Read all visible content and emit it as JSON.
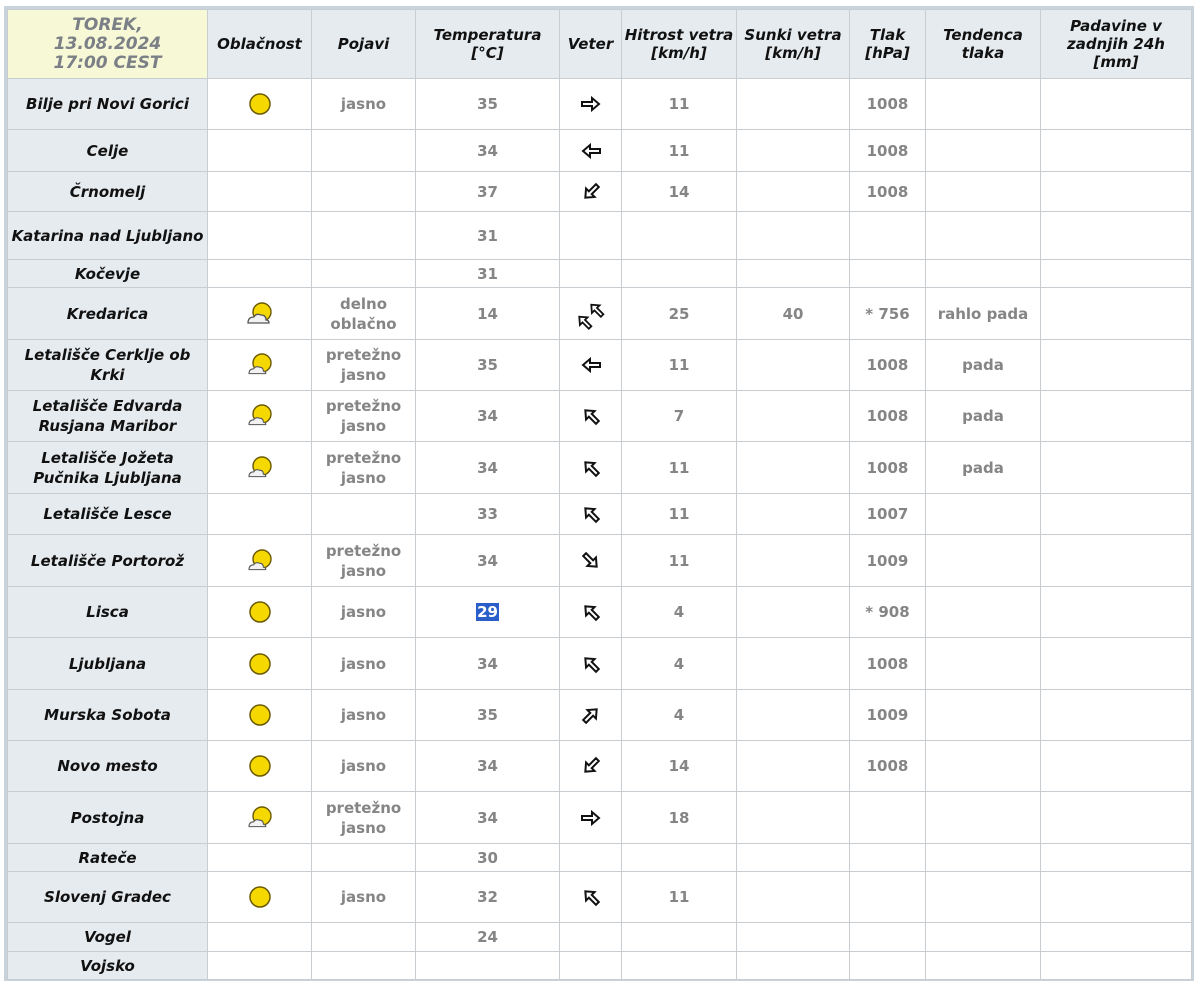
{
  "header": {
    "date_lines": [
      "TOREK,",
      "13.08.2024",
      "17:00 CEST"
    ],
    "columns": [
      "Oblačnost",
      "Pojavi",
      "Temperatura [°C]",
      "Veter",
      "Hitrost vetra [km/h]",
      "Sunki vetra [km/h]",
      "Tlak [hPa]",
      "Tendenca tlaka",
      "Padavine v zadnjih 24h [mm]"
    ]
  },
  "rows": [
    {
      "station": "Bilje pri Novi Gorici",
      "cloud": "sun-icon",
      "phen": "jasno",
      "temp": "35",
      "wind": "E",
      "speed": "11",
      "gust": "",
      "press": "1008",
      "trend": "",
      "precip": ""
    },
    {
      "station": "Celje",
      "cloud": "",
      "phen": "",
      "temp": "34",
      "wind": "W",
      "speed": "11",
      "gust": "",
      "press": "1008",
      "trend": "",
      "precip": ""
    },
    {
      "station": "Črnomelj",
      "cloud": "",
      "phen": "",
      "temp": "37",
      "wind": "SW",
      "speed": "14",
      "gust": "",
      "press": "1008",
      "trend": "",
      "precip": ""
    },
    {
      "station": "Katarina nad Ljubljano",
      "cloud": "",
      "phen": "",
      "temp": "31",
      "wind": "",
      "speed": "",
      "gust": "",
      "press": "",
      "trend": "",
      "precip": ""
    },
    {
      "station": "Kočevje",
      "cloud": "",
      "phen": "",
      "temp": "31",
      "wind": "",
      "speed": "",
      "gust": "",
      "press": "",
      "trend": "",
      "precip": ""
    },
    {
      "station": "Kredarica",
      "cloud": "partly-cloudy-icon",
      "phen": "delno oblačno",
      "temp": "14",
      "wind": "NW-strong",
      "speed": "25",
      "gust": "40",
      "press": "* 756",
      "trend": "rahlo pada",
      "precip": ""
    },
    {
      "station": "Letališče Cerklje ob Krki",
      "cloud": "mostly-clear-icon",
      "phen": "pretežno jasno",
      "temp": "35",
      "wind": "W",
      "speed": "11",
      "gust": "",
      "press": "1008",
      "trend": "pada",
      "precip": ""
    },
    {
      "station": "Letališče Edvarda Rusjana Maribor",
      "cloud": "mostly-clear-icon",
      "phen": "pretežno jasno",
      "temp": "34",
      "wind": "NW",
      "speed": "7",
      "gust": "",
      "press": "1008",
      "trend": "pada",
      "precip": ""
    },
    {
      "station": "Letališče Jožeta Pučnika Ljubljana",
      "cloud": "mostly-clear-icon",
      "phen": "pretežno jasno",
      "temp": "34",
      "wind": "NW",
      "speed": "11",
      "gust": "",
      "press": "1008",
      "trend": "pada",
      "precip": ""
    },
    {
      "station": "Letališče Lesce",
      "cloud": "",
      "phen": "",
      "temp": "33",
      "wind": "NW",
      "speed": "11",
      "gust": "",
      "press": "1007",
      "trend": "",
      "precip": ""
    },
    {
      "station": "Letališče Portorož",
      "cloud": "mostly-clear-icon",
      "phen": "pretežno jasno",
      "temp": "34",
      "wind": "SE",
      "speed": "11",
      "gust": "",
      "press": "1009",
      "trend": "",
      "precip": ""
    },
    {
      "station": "Lisca",
      "cloud": "sun-icon",
      "phen": "jasno",
      "temp": "29",
      "wind": "NW",
      "speed": "4",
      "gust": "",
      "press": "* 908",
      "trend": "",
      "precip": "",
      "selected": true
    },
    {
      "station": "Ljubljana",
      "cloud": "sun-icon",
      "phen": "jasno",
      "temp": "34",
      "wind": "NW",
      "speed": "4",
      "gust": "",
      "press": "1008",
      "trend": "",
      "precip": ""
    },
    {
      "station": "Murska Sobota",
      "cloud": "sun-icon",
      "phen": "jasno",
      "temp": "35",
      "wind": "NE",
      "speed": "4",
      "gust": "",
      "press": "1009",
      "trend": "",
      "precip": ""
    },
    {
      "station": "Novo mesto",
      "cloud": "sun-icon",
      "phen": "jasno",
      "temp": "34",
      "wind": "SW",
      "speed": "14",
      "gust": "",
      "press": "1008",
      "trend": "",
      "precip": ""
    },
    {
      "station": "Postojna",
      "cloud": "mostly-clear-icon",
      "phen": "pretežno jasno",
      "temp": "34",
      "wind": "E",
      "speed": "18",
      "gust": "",
      "press": "",
      "trend": "",
      "precip": ""
    },
    {
      "station": "Rateče",
      "cloud": "",
      "phen": "",
      "temp": "30",
      "wind": "",
      "speed": "",
      "gust": "",
      "press": "",
      "trend": "",
      "precip": ""
    },
    {
      "station": "Slovenj Gradec",
      "cloud": "sun-icon",
      "phen": "jasno",
      "temp": "32",
      "wind": "NW",
      "speed": "11",
      "gust": "",
      "press": "",
      "trend": "",
      "precip": ""
    },
    {
      "station": "Vogel",
      "cloud": "",
      "phen": "",
      "temp": "24",
      "wind": "",
      "speed": "",
      "gust": "",
      "press": "",
      "trend": "",
      "precip": ""
    },
    {
      "station": "Vojsko",
      "cloud": "",
      "phen": "",
      "temp": "",
      "wind": "",
      "speed": "",
      "gust": "",
      "press": "",
      "trend": "",
      "precip": ""
    }
  ],
  "colors": {
    "header_bg": "#e6ebef",
    "date_bg": "#f7f9d6",
    "sun": "#f5d800",
    "selection": "#2a5ec9"
  }
}
